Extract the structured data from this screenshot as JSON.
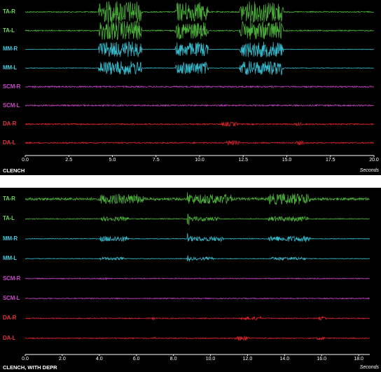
{
  "panels": [
    {
      "caption": "CLENCH",
      "unit": "Seconds",
      "x_ticks": [
        "0.0",
        "2.5",
        "5.0",
        "7.5",
        "10.0",
        "12.5",
        "15.0",
        "17.5",
        "20.0"
      ],
      "x_range": [
        0,
        20
      ],
      "channels": [
        {
          "label": "TA-R",
          "color": "#4cae3a",
          "label_color": "#6fd35a",
          "baseline": 0.8,
          "bursts": [
            [
              4.2,
              6.7,
              16
            ],
            [
              8.6,
              10.5,
              14
            ],
            [
              12.3,
              14.8,
              15
            ]
          ],
          "spikes": []
        },
        {
          "label": "TA-L",
          "color": "#4cae3a",
          "label_color": "#6fd35a",
          "baseline": 0.8,
          "bursts": [
            [
              4.2,
              6.7,
              14
            ],
            [
              8.6,
              10.5,
              12
            ],
            [
              12.3,
              14.8,
              13
            ]
          ],
          "spikes": []
        },
        {
          "label": "MM-R",
          "color": "#35b8c9",
          "label_color": "#3fc8db",
          "baseline": 0.4,
          "bursts": [
            [
              4.2,
              6.7,
              11
            ],
            [
              8.6,
              10.5,
              10
            ],
            [
              12.3,
              14.8,
              11
            ]
          ],
          "spikes": []
        },
        {
          "label": "MM-L",
          "color": "#35b8c9",
          "label_color": "#3fc8db",
          "baseline": 0.4,
          "bursts": [
            [
              4.2,
              6.7,
              10
            ],
            [
              8.6,
              10.5,
              9
            ],
            [
              12.3,
              14.8,
              10
            ]
          ],
          "spikes": []
        },
        {
          "label": "SCM-R",
          "color": "#b43fb4",
          "label_color": "#c64bc6",
          "baseline": 1.0,
          "bursts": [],
          "spikes": []
        },
        {
          "label": "SCM-L",
          "color": "#b43fb4",
          "label_color": "#c64bc6",
          "baseline": 1.0,
          "bursts": [],
          "spikes": []
        },
        {
          "label": "DA-R",
          "color": "#d2222a",
          "label_color": "#e0383f",
          "baseline": 0.9,
          "bursts": [
            [
              11.2,
              12.2,
              3
            ],
            [
              15.4,
              15.9,
              2.5
            ]
          ],
          "spikes": []
        },
        {
          "label": "DA-L",
          "color": "#d2222a",
          "label_color": "#e0383f",
          "baseline": 0.9,
          "bursts": [
            [
              11.5,
              12.3,
              4
            ],
            [
              15.5,
              16.0,
              3
            ]
          ],
          "spikes": []
        }
      ]
    },
    {
      "caption": "CLENCH, WITH DEPR",
      "unit": "Seconds",
      "x_ticks": [
        "0.0",
        "2.0",
        "4.0",
        "6.0",
        "8.0",
        "10.0",
        "12.0",
        "14.0",
        "16.0",
        "18.0"
      ],
      "x_range": [
        0,
        18.6
      ],
      "channels": [
        {
          "label": "TA-R",
          "color": "#4cae3a",
          "label_color": "#6fd35a",
          "baseline": 1.8,
          "bursts": [
            [
              4.0,
              6.4,
              7
            ],
            [
              8.8,
              11.2,
              7
            ],
            [
              13.1,
              15.4,
              8
            ]
          ],
          "spikes": [
            [
              8.8,
              10
            ]
          ]
        },
        {
          "label": "TA-L",
          "color": "#4cae3a",
          "label_color": "#6fd35a",
          "baseline": 0.6,
          "bursts": [
            [
              4.0,
              5.6,
              3
            ],
            [
              8.8,
              10.5,
              3
            ],
            [
              13.1,
              15.3,
              3.5
            ]
          ],
          "spikes": [
            [
              8.8,
              9
            ]
          ]
        },
        {
          "label": "MM-R",
          "color": "#35b8c9",
          "label_color": "#3fc8db",
          "baseline": 0.5,
          "bursts": [
            [
              4.0,
              5.6,
              4
            ],
            [
              8.8,
              10.7,
              3.5
            ],
            [
              13.1,
              15.4,
              4
            ]
          ],
          "spikes": [
            [
              8.8,
              8
            ]
          ]
        },
        {
          "label": "MM-L",
          "color": "#35b8c9",
          "label_color": "#3fc8db",
          "baseline": 0.4,
          "bursts": [
            [
              4.0,
              5.4,
              2
            ],
            [
              8.8,
              10.2,
              2
            ],
            [
              13.2,
              15.2,
              2.2
            ]
          ],
          "spikes": [
            [
              8.8,
              6
            ]
          ]
        },
        {
          "label": "SCM-R",
          "color": "#b43fb4",
          "label_color": "#c64bc6",
          "baseline": 0.7,
          "bursts": [
            [
              4.0,
              4.5,
              1.5
            ]
          ],
          "spikes": []
        },
        {
          "label": "SCM-L",
          "color": "#b43fb4",
          "label_color": "#c64bc6",
          "baseline": 0.7,
          "bursts": [],
          "spikes": []
        },
        {
          "label": "DA-R",
          "color": "#d2222a",
          "label_color": "#e0383f",
          "baseline": 0.7,
          "bursts": [
            [
              6.8,
              7.0,
              3
            ],
            [
              11.6,
              12.8,
              2.5
            ],
            [
              15.8,
              16.3,
              2.5
            ]
          ],
          "spikes": []
        },
        {
          "label": "DA-L",
          "color": "#d2222a",
          "label_color": "#e0383f",
          "baseline": 0.7,
          "bursts": [
            [
              6.9,
              7.1,
              2
            ],
            [
              11.3,
              12.1,
              3.5
            ],
            [
              15.7,
              16.2,
              2.5
            ]
          ],
          "spikes": []
        }
      ]
    }
  ]
}
